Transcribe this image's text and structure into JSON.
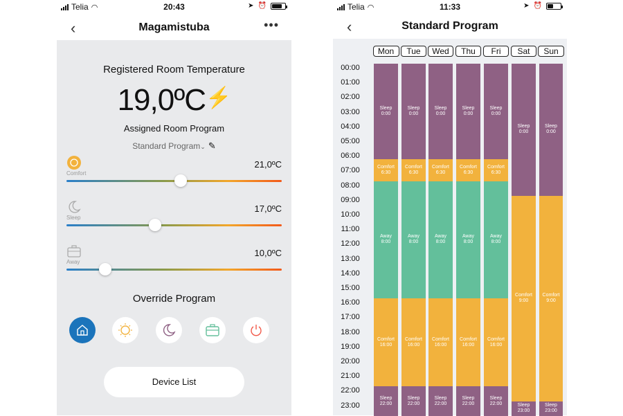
{
  "left": {
    "status": {
      "carrier": "Telia",
      "time": "20:43"
    },
    "nav": {
      "back": "‹",
      "title": "Magamistuba",
      "more": "•••"
    },
    "registered_title": "Registered Room Temperature",
    "temperature": "19,0ºC",
    "assigned_title": "Assigned Room Program",
    "program_name": "Standard Program",
    "modes": [
      {
        "label": "Comfort",
        "value": "21,0ºC",
        "level": 0.53,
        "icon": "sun-icon"
      },
      {
        "label": "Sleep",
        "value": "17,0ºC",
        "level": 0.41,
        "icon": "moon-icon"
      },
      {
        "label": "Away",
        "value": "10,0ºC",
        "level": 0.18,
        "icon": "suitcase-icon"
      }
    ],
    "override_title": "Override Program",
    "override_buttons": [
      "home-icon",
      "sun-icon",
      "moon-icon",
      "suitcase-icon",
      "power-icon"
    ],
    "device_list": "Device List",
    "colors": {
      "accent": "#1b74bb",
      "bolt": "#f08a2c"
    }
  },
  "right": {
    "status": {
      "carrier": "Telia",
      "time": "11:33"
    },
    "nav": {
      "back": "‹",
      "title": "Standard Program"
    },
    "days": [
      "Mon",
      "Tue",
      "Wed",
      "Thu",
      "Fri",
      "Sat",
      "Sun"
    ],
    "hours": [
      "00:00",
      "01:00",
      "02:00",
      "03:00",
      "04:00",
      "05:00",
      "06:00",
      "07:00",
      "08:00",
      "09:00",
      "10:00",
      "11:00",
      "12:00",
      "13:00",
      "14:00",
      "15:00",
      "16:00",
      "17:00",
      "18:00",
      "19:00",
      "20:00",
      "21:00",
      "22:00",
      "23:00"
    ],
    "weekday_blocks": [
      {
        "mode": "sleep",
        "label": "Sleep",
        "time": "0:00",
        "start": 0,
        "end": 6.5
      },
      {
        "mode": "comfort",
        "label": "Comfort",
        "time": "6:30",
        "start": 6.5,
        "end": 8
      },
      {
        "mode": "away",
        "label": "Away",
        "time": "8:00",
        "start": 8,
        "end": 16
      },
      {
        "mode": "comfort",
        "label": "Comfort",
        "time": "16:00",
        "start": 16,
        "end": 22
      },
      {
        "mode": "sleep",
        "label": "Sleep",
        "time": "22:00",
        "start": 22,
        "end": 24
      }
    ],
    "weekend_blocks": [
      {
        "mode": "sleep",
        "label": "Sleep",
        "time": "0:00",
        "start": 0,
        "end": 9
      },
      {
        "mode": "comfort",
        "label": "Comfort",
        "time": "9:00",
        "start": 9,
        "end": 23
      },
      {
        "mode": "sleep",
        "label": "Sleep",
        "time": "23:00",
        "start": 23,
        "end": 24
      }
    ],
    "colors": {
      "sleep": "#8f6184",
      "comfort": "#f2b23d",
      "away": "#63bf9b"
    }
  }
}
